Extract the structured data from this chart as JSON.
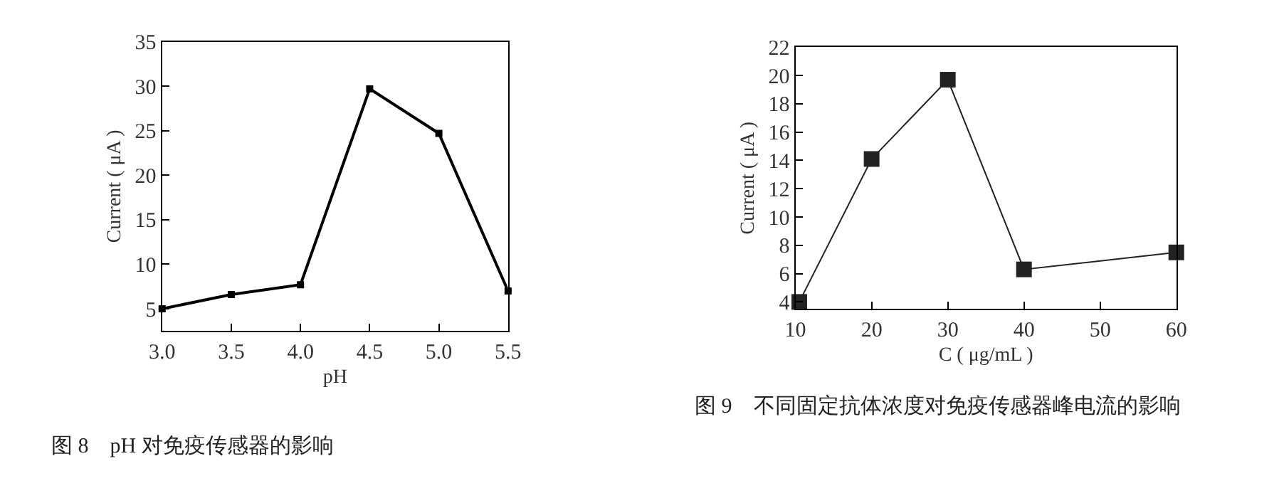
{
  "chart_data": [
    {
      "type": "line",
      "xlabel": "pH",
      "ylabel": "Current ( μA )",
      "annotations": [
        "图 8　pH 对免疫传感器的影响"
      ],
      "x": [
        3.0,
        3.5,
        4.0,
        4.5,
        5.0,
        5.5
      ],
      "series": [
        {
          "color": "#000000",
          "values": [
            5.0,
            6.6,
            7.7,
            29.7,
            24.7,
            7.0
          ]
        }
      ],
      "xlim": [
        3.0,
        5.5
      ],
      "xticks": [
        {
          "value": 3.0,
          "label": "3.0"
        },
        {
          "value": 3.5,
          "label": "3.5"
        },
        {
          "value": 4.0,
          "label": "4.0"
        },
        {
          "value": 4.5,
          "label": "4.5"
        },
        {
          "value": 5.0,
          "label": "5.0"
        },
        {
          "value": 5.5,
          "label": "5.5"
        }
      ],
      "ylim": [
        2.5,
        35
      ],
      "yticks": [
        5,
        10,
        15,
        20,
        25,
        30,
        35
      ],
      "marker": "square"
    },
    {
      "type": "line",
      "xlabel": "C ( μg/mL )",
      "ylabel": "Current ( μA )",
      "annotations": [
        "图 9　不同固定抗体浓度对免疫传感器峰电流的影响"
      ],
      "x": [
        10.5,
        20,
        30,
        40,
        60
      ],
      "series": [
        {
          "color": "#222222",
          "values": [
            4.0,
            14.1,
            19.7,
            6.3,
            7.5
          ]
        }
      ],
      "xlim": [
        10,
        60
      ],
      "xticks": [
        10,
        20,
        30,
        40,
        50,
        60
      ],
      "ylim": [
        3.5,
        22
      ],
      "yticks": [
        4,
        6,
        8,
        10,
        12,
        14,
        16,
        18,
        20,
        22
      ],
      "marker": "square"
    }
  ]
}
